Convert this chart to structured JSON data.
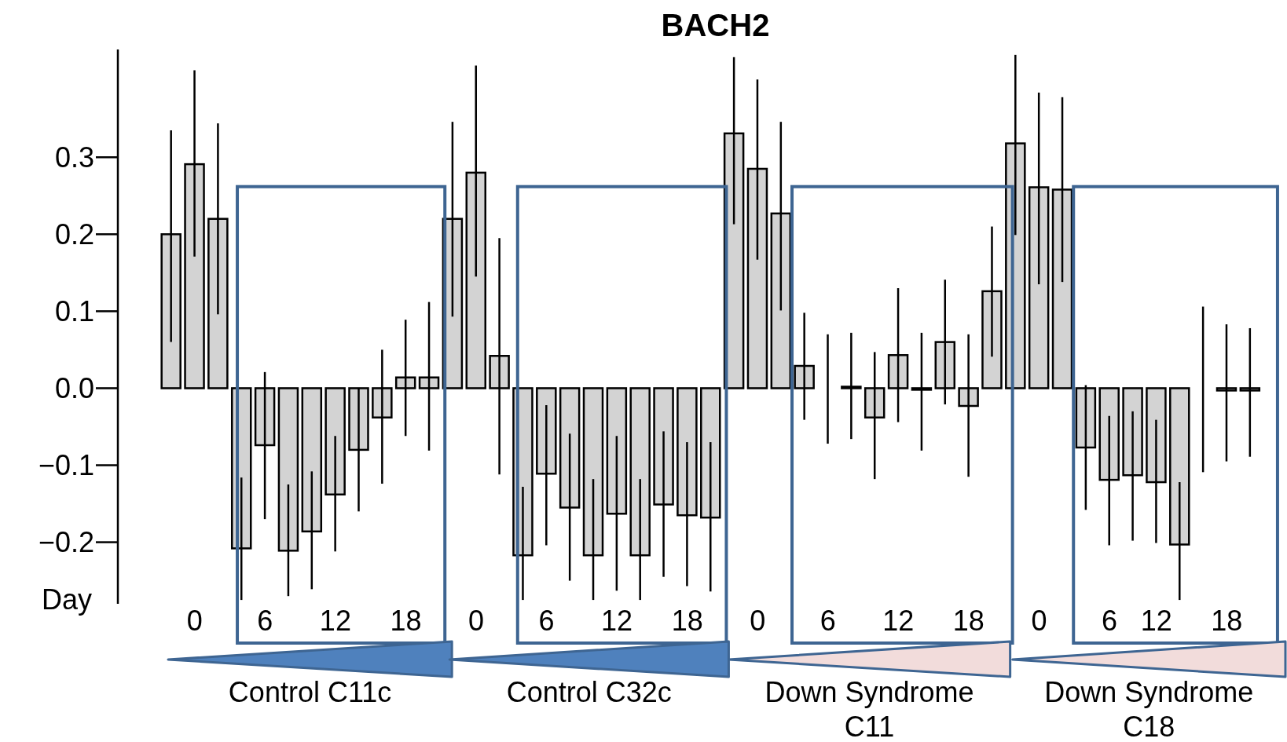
{
  "chart_data": {
    "type": "bar",
    "title": "BACH2",
    "xlabel": "Day",
    "categories": [
      null,
      "0",
      null,
      null,
      "6",
      null,
      null,
      "12",
      null,
      null,
      "18",
      null,
      null,
      "0",
      null,
      null,
      "6",
      null,
      null,
      "12",
      null,
      null,
      "18",
      null,
      null,
      "0",
      null,
      null,
      "6",
      null,
      null,
      "12",
      null,
      null,
      "18",
      null,
      null,
      "0",
      null,
      null,
      "6",
      null,
      "12",
      null,
      null,
      "18",
      null
    ],
    "series": [
      {
        "color": "#d3d3d3",
        "values": [
          0.2,
          0.291,
          0.22,
          -0.208,
          -0.074,
          -0.211,
          -0.186,
          -0.138,
          -0.08,
          -0.038,
          0.014,
          0.014,
          0.22,
          0.28,
          0.042,
          -0.217,
          -0.111,
          -0.155,
          -0.217,
          -0.163,
          -0.217,
          -0.151,
          -0.165,
          -0.168,
          0.331,
          0.285,
          0.227,
          0.029,
          0,
          0.002,
          -0.038,
          0.043,
          -0.002,
          0.06,
          -0.023,
          0.126,
          0.318,
          0.261,
          0.258,
          -0.077,
          -0.119,
          -0.113,
          -0.122,
          -0.203,
          0,
          -0.003,
          -0.003
        ],
        "errors": [
          [
            0.06,
            0.335
          ],
          [
            0.171,
            0.413
          ],
          [
            0.096,
            0.344
          ],
          [
            -0.275,
            -0.116
          ],
          [
            -0.17,
            0.021
          ],
          [
            -0.27,
            -0.125
          ],
          [
            -0.261,
            -0.108
          ],
          [
            -0.212,
            -0.062
          ],
          [
            -0.16,
            0.0
          ],
          [
            -0.124,
            0.05
          ],
          [
            -0.062,
            0.089
          ],
          [
            -0.081,
            0.112
          ],
          [
            0.093,
            0.346
          ],
          [
            0.145,
            0.419
          ],
          [
            -0.112,
            0.195
          ],
          [
            -0.275,
            -0.128
          ],
          [
            -0.204,
            -0.022
          ],
          [
            -0.25,
            -0.059
          ],
          [
            -0.275,
            -0.118
          ],
          [
            -0.263,
            -0.062
          ],
          [
            -0.275,
            -0.118
          ],
          [
            -0.245,
            -0.056
          ],
          [
            -0.257,
            -0.07
          ],
          [
            -0.264,
            -0.07
          ],
          [
            0.213,
            0.43
          ],
          [
            0.167,
            0.401
          ],
          [
            0.101,
            0.346
          ],
          [
            -0.041,
            0.098
          ],
          [
            -0.072,
            0.07
          ],
          [
            -0.066,
            0.072
          ],
          [
            -0.118,
            0.047
          ],
          [
            -0.044,
            0.13
          ],
          [
            -0.081,
            0.072
          ],
          [
            -0.021,
            0.141
          ],
          [
            -0.115,
            0.07
          ],
          [
            0.041,
            0.21
          ],
          [
            0.199,
            0.433
          ],
          [
            0.135,
            0.384
          ],
          [
            0.138,
            0.378
          ],
          [
            -0.158,
            0.004
          ],
          [
            -0.204,
            -0.036
          ],
          [
            -0.198,
            -0.03
          ],
          [
            -0.201,
            -0.041
          ],
          [
            -0.275,
            -0.122
          ],
          [
            -0.109,
            0.106
          ],
          [
            -0.095,
            0.083
          ],
          [
            -0.089,
            0.078
          ]
        ]
      }
    ],
    "ylim": [
      -0.28,
      0.44
    ],
    "yticks": [
      {
        "value": -0.2,
        "label": "−0.2"
      },
      {
        "value": -0.1,
        "label": "−0.1"
      },
      {
        "value": 0,
        "label": "0.0"
      },
      0.1,
      0.2,
      0.3
    ],
    "grid": false,
    "legend": false,
    "annotations": [
      "Control C11c",
      "Control C32c",
      "Down Syndrome C11",
      "Down Syndrome C18"
    ]
  }
}
